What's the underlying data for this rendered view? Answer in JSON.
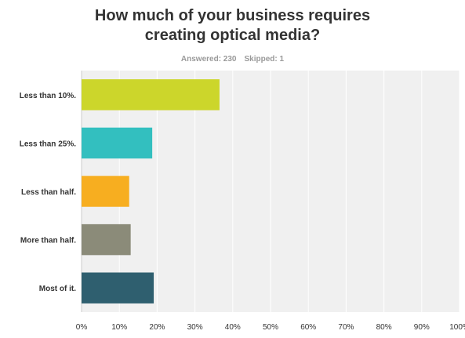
{
  "title_lines": [
    "How much of your business requires",
    "creating optical media?"
  ],
  "summary": {
    "answered_label": "Answered: 230",
    "skipped_label": "Skipped: 1"
  },
  "chart_data": {
    "type": "bar",
    "orientation": "horizontal",
    "title": "How much of your business requires creating optical media?",
    "categories": [
      "Less than 10%.",
      "Less than 25%.",
      "Less than half.",
      "More than half.",
      "Most of it."
    ],
    "values": [
      36.5,
      18.7,
      12.6,
      13.0,
      19.1
    ],
    "colors": [
      "#ccd62b",
      "#33bfbf",
      "#f7ae20",
      "#8b8b79",
      "#2f5f6f"
    ],
    "value_unit": "%",
    "xlim": [
      0,
      100
    ],
    "x_ticks": [
      0,
      10,
      20,
      30,
      40,
      50,
      60,
      70,
      80,
      90,
      100
    ],
    "x_tick_labels": [
      "0%",
      "10%",
      "20%",
      "30%",
      "40%",
      "50%",
      "60%",
      "70%",
      "80%",
      "90%",
      "100%"
    ],
    "grid": true,
    "xlabel": "",
    "ylabel": ""
  }
}
